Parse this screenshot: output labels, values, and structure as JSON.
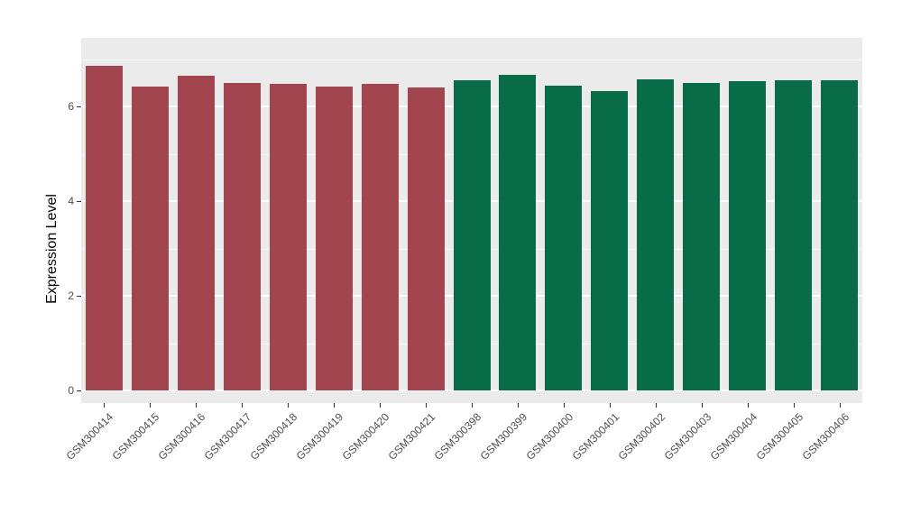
{
  "chart_data": {
    "type": "bar",
    "title": "",
    "xlabel": "",
    "ylabel": "Expression Level",
    "ylim": [
      0,
      7.45
    ],
    "yticks_major": [
      0,
      2,
      4,
      6
    ],
    "yticks_minor": [
      1,
      3,
      5,
      7
    ],
    "grid": "on",
    "legend": "none",
    "panel_background": "#EBEBEB",
    "gridline_color": "#FFFFFF",
    "categories": [
      "GSM300414",
      "GSM300415",
      "GSM300416",
      "GSM300417",
      "GSM300418",
      "GSM300419",
      "GSM300420",
      "GSM300421",
      "GSM300398",
      "GSM300399",
      "GSM300400",
      "GSM300401",
      "GSM300402",
      "GSM300403",
      "GSM300404",
      "GSM300405",
      "GSM300406"
    ],
    "values": [
      6.86,
      6.41,
      6.64,
      6.49,
      6.47,
      6.41,
      6.47,
      6.4,
      6.55,
      6.66,
      6.43,
      6.33,
      6.57,
      6.49,
      6.53,
      6.56,
      6.56
    ],
    "bar_colors": [
      "#A3454F",
      "#A3454F",
      "#A3454F",
      "#A3454F",
      "#A3454F",
      "#A3454F",
      "#A3454F",
      "#A3454F",
      "#096C49",
      "#096C49",
      "#096C49",
      "#096C49",
      "#096C49",
      "#096C49",
      "#096C49",
      "#096C49",
      "#096C49"
    ],
    "groups": [
      {
        "name": "group-red",
        "color": "#A3454F",
        "count": 8
      },
      {
        "name": "group-green",
        "color": "#096C49",
        "count": 9
      }
    ]
  }
}
